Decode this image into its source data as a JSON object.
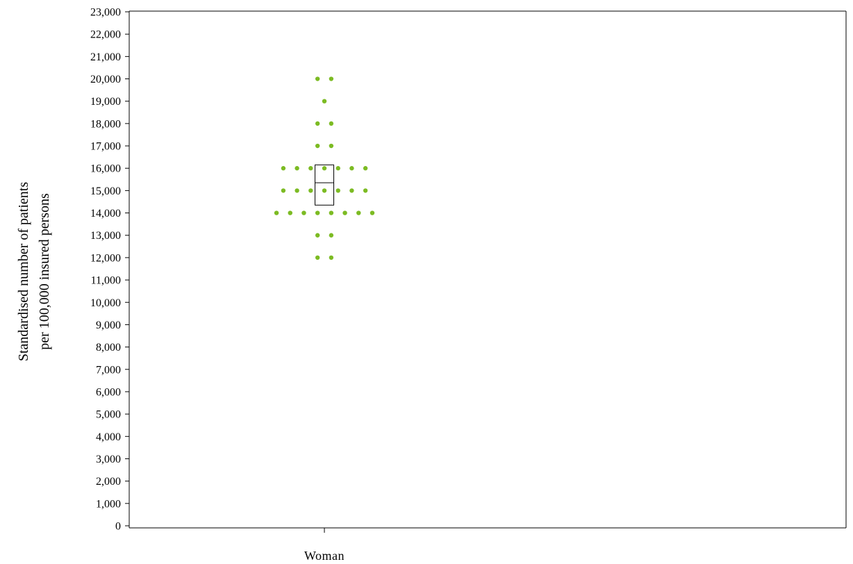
{
  "chart_data": {
    "type": "scatter",
    "subtype": "dot-plot-with-box",
    "categories": [
      "Woman"
    ],
    "ylabel": [
      "Standardised number of patients",
      "per 100,000 insured persons"
    ],
    "ylim": [
      0,
      23000
    ],
    "yticks": [
      "0",
      "1,000",
      "2,000",
      "3,000",
      "4,000",
      "5,000",
      "6,000",
      "7,000",
      "8,000",
      "9,000",
      "10,000",
      "11,000",
      "12,000",
      "13,000",
      "14,000",
      "15,000",
      "16,000",
      "17,000",
      "18,000",
      "19,000",
      "20,000",
      "21,000",
      "22,000",
      "23,000"
    ],
    "grid": false,
    "dot_color": "#7cbb23",
    "box": {
      "category": "Woman",
      "q1": 14350,
      "median": 15350,
      "q3": 16150
    },
    "points": [
      {
        "category": "Woman",
        "y": 20000,
        "count": 2
      },
      {
        "category": "Woman",
        "y": 19000,
        "count": 1
      },
      {
        "category": "Woman",
        "y": 18000,
        "count": 2
      },
      {
        "category": "Woman",
        "y": 17000,
        "count": 2
      },
      {
        "category": "Woman",
        "y": 16000,
        "count": 7
      },
      {
        "category": "Woman",
        "y": 15000,
        "count": 7
      },
      {
        "category": "Woman",
        "y": 14000,
        "count": 8
      },
      {
        "category": "Woman",
        "y": 13000,
        "count": 2
      },
      {
        "category": "Woman",
        "y": 12000,
        "count": 2
      }
    ]
  }
}
